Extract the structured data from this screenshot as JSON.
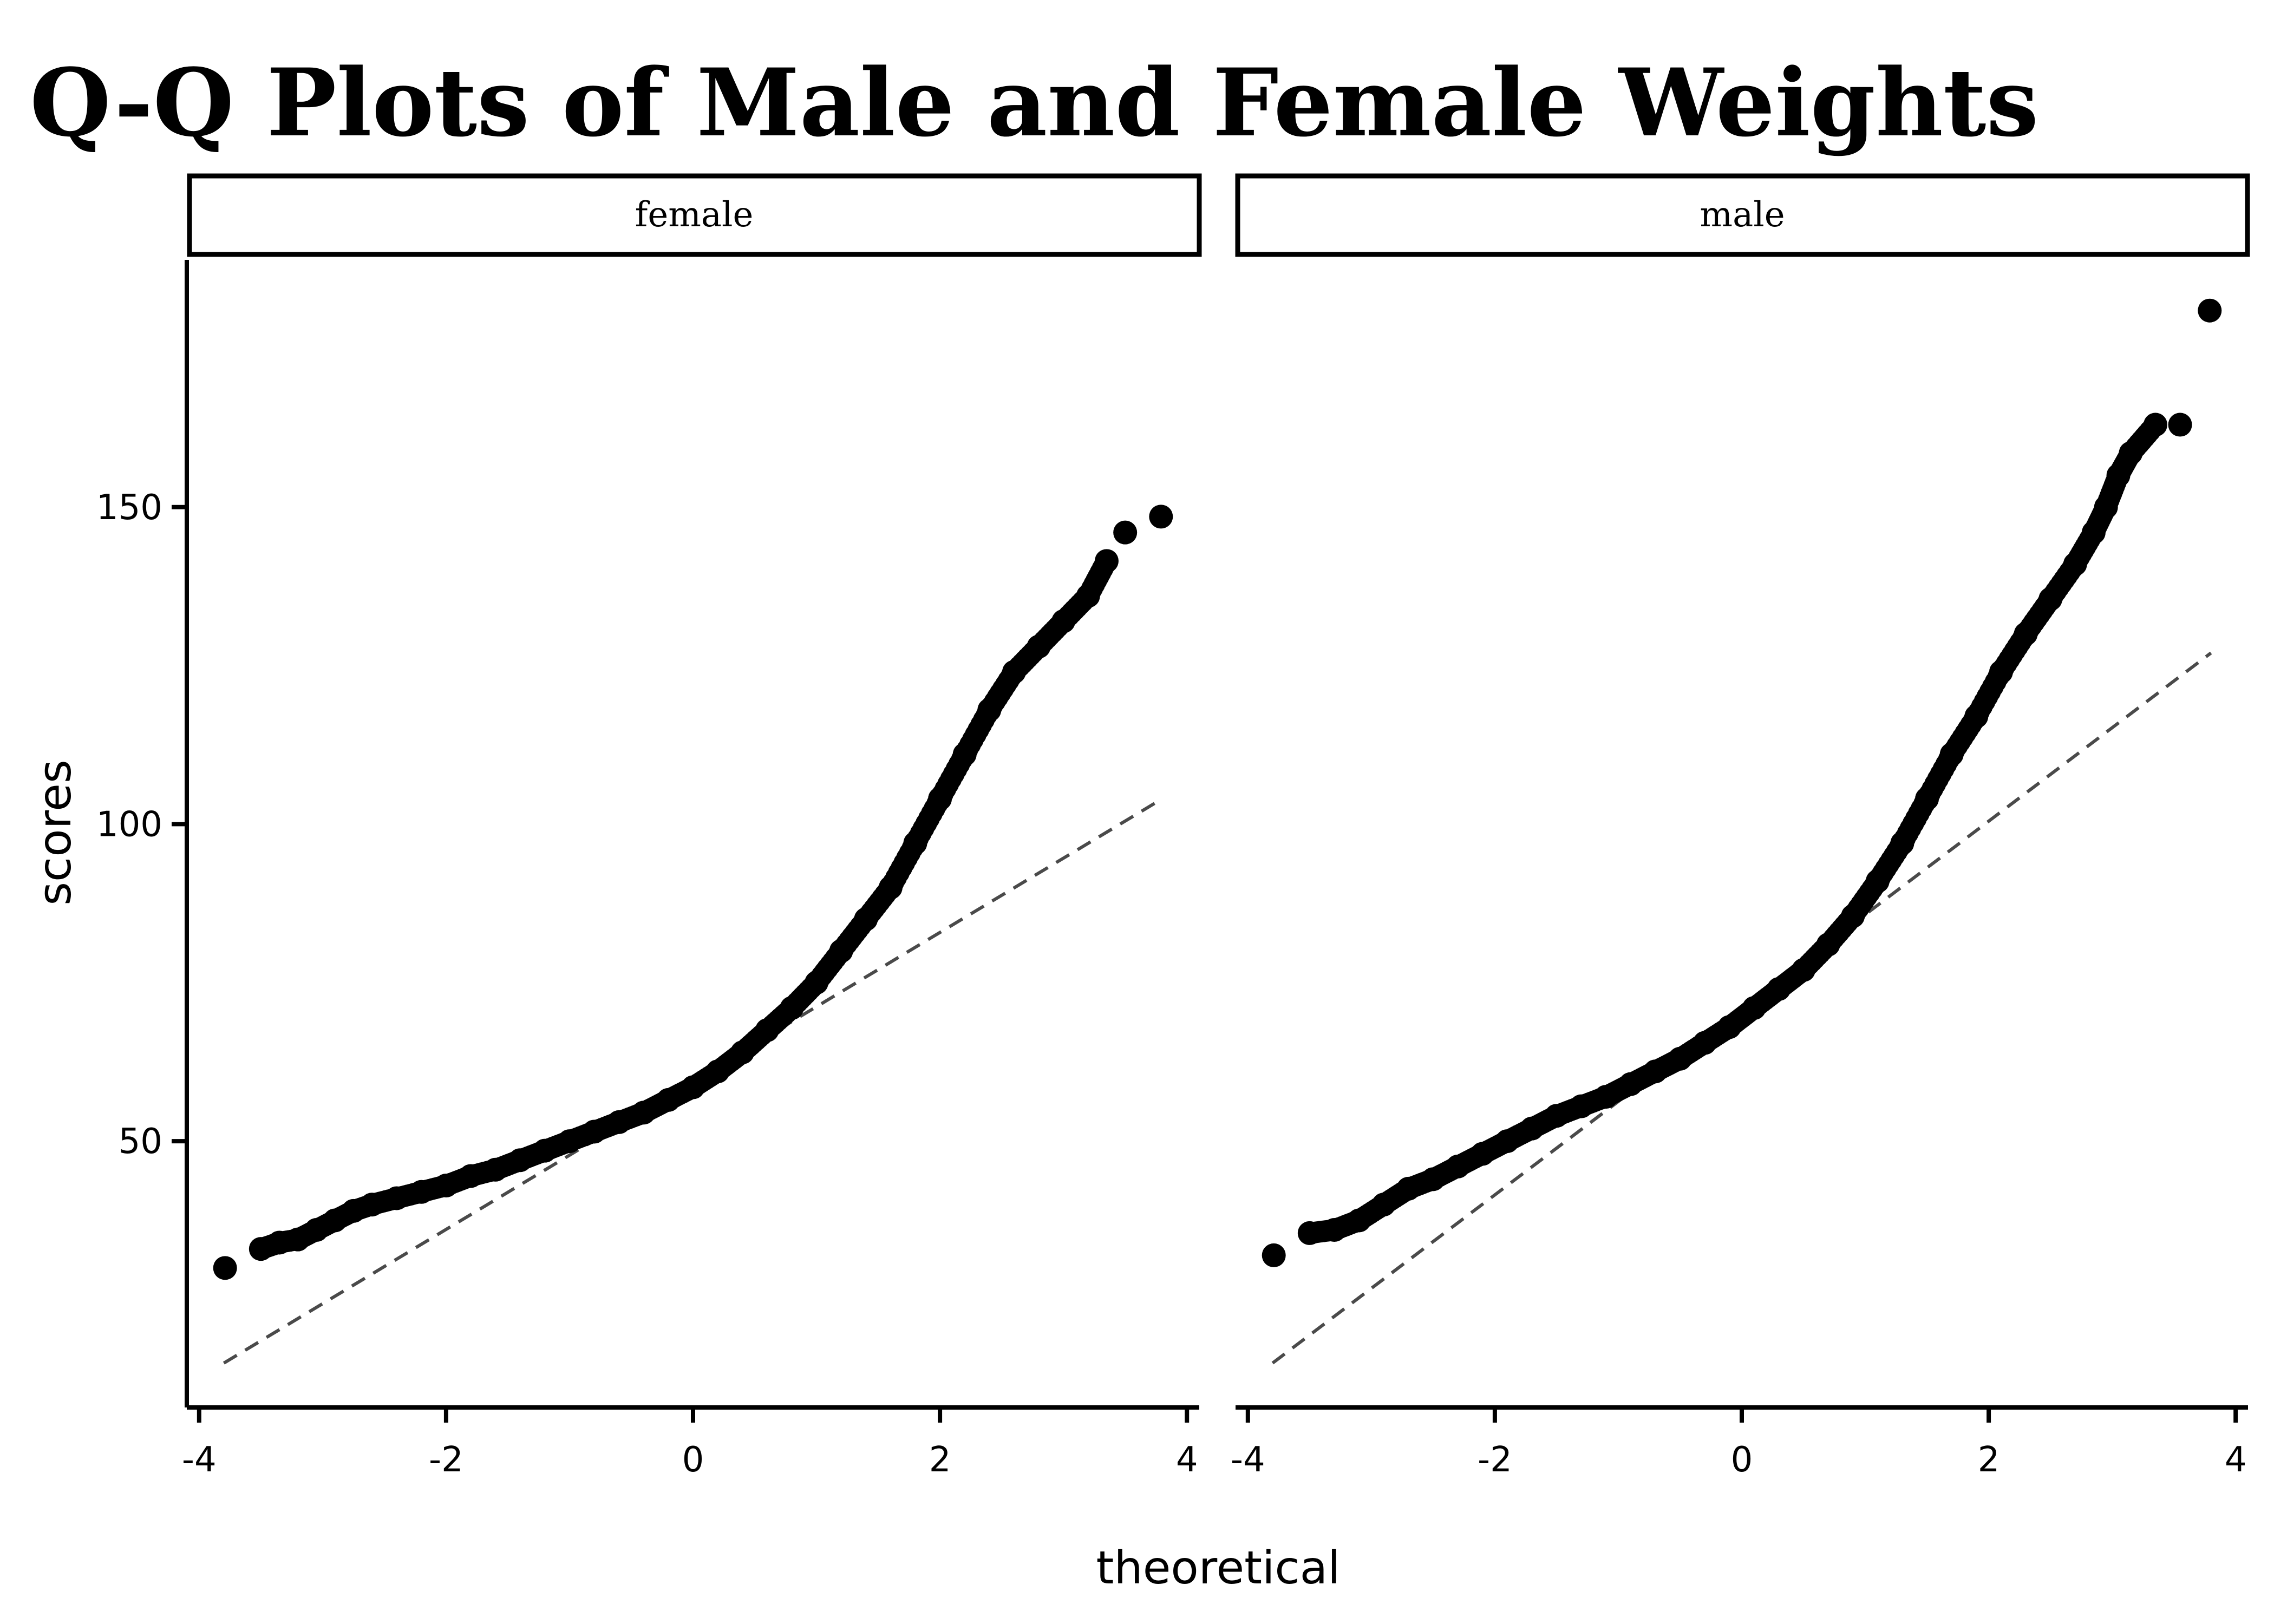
{
  "chart_data": {
    "type": "scatter",
    "title": "Q-Q Plots of Male and Female Weights",
    "xlabel": "theoretical",
    "ylabel": "scores",
    "xlim": [
      -4.1,
      4.1
    ],
    "ylim": [
      8,
      189
    ],
    "x_ticks": [
      "-4",
      "-2",
      "0",
      "2",
      "4"
    ],
    "y_ticks": [
      "50",
      "100",
      "150"
    ],
    "panels": [
      {
        "label": "female",
        "reference_line": {
          "x": [
            -3.8,
            3.8
          ],
          "y": [
            15,
            104
          ]
        },
        "points": [
          [
            -3.79,
            30
          ],
          [
            -3.5,
            33
          ],
          [
            -3.35,
            34
          ],
          [
            -3.2,
            34.5
          ],
          [
            -3.05,
            36
          ],
          [
            -2.9,
            37.5
          ],
          [
            -2.75,
            39
          ],
          [
            -2.6,
            40
          ],
          [
            -2.4,
            41
          ],
          [
            -2.2,
            42
          ],
          [
            -2.0,
            43
          ],
          [
            -1.8,
            44.5
          ],
          [
            -1.6,
            45.5
          ],
          [
            -1.4,
            47
          ],
          [
            -1.2,
            48.5
          ],
          [
            -1.0,
            50
          ],
          [
            -0.8,
            51.5
          ],
          [
            -0.6,
            53
          ],
          [
            -0.4,
            54.5
          ],
          [
            -0.2,
            56.5
          ],
          [
            0.0,
            58.5
          ],
          [
            0.2,
            61
          ],
          [
            0.4,
            64
          ],
          [
            0.6,
            67.5
          ],
          [
            0.8,
            71
          ],
          [
            1.0,
            75
          ],
          [
            1.2,
            80
          ],
          [
            1.4,
            85
          ],
          [
            1.6,
            90
          ],
          [
            1.8,
            97
          ],
          [
            2.0,
            104
          ],
          [
            2.2,
            111
          ],
          [
            2.4,
            118
          ],
          [
            2.6,
            124
          ],
          [
            2.8,
            128
          ],
          [
            3.0,
            132
          ],
          [
            3.2,
            136
          ],
          [
            3.35,
            141.5
          ],
          [
            3.5,
            146
          ],
          [
            3.79,
            148.5
          ]
        ]
      },
      {
        "label": "male",
        "reference_line": {
          "x": [
            -3.8,
            3.8
          ],
          "y": [
            15,
            127
          ]
        },
        "points": [
          [
            -3.79,
            32
          ],
          [
            -3.5,
            35.5
          ],
          [
            -3.3,
            36
          ],
          [
            -3.1,
            37.5
          ],
          [
            -2.9,
            40
          ],
          [
            -2.7,
            42.5
          ],
          [
            -2.5,
            44
          ],
          [
            -2.3,
            46
          ],
          [
            -2.1,
            48
          ],
          [
            -1.9,
            50
          ],
          [
            -1.7,
            52
          ],
          [
            -1.5,
            54
          ],
          [
            -1.3,
            55.5
          ],
          [
            -1.1,
            57
          ],
          [
            -0.9,
            59
          ],
          [
            -0.7,
            61
          ],
          [
            -0.5,
            63
          ],
          [
            -0.3,
            65.5
          ],
          [
            -0.1,
            68
          ],
          [
            0.1,
            71
          ],
          [
            0.3,
            74
          ],
          [
            0.5,
            77
          ],
          [
            0.7,
            81
          ],
          [
            0.9,
            85.5
          ],
          [
            1.1,
            91
          ],
          [
            1.3,
            97
          ],
          [
            1.5,
            104
          ],
          [
            1.7,
            111
          ],
          [
            1.9,
            117
          ],
          [
            2.1,
            124
          ],
          [
            2.3,
            130
          ],
          [
            2.5,
            135.5
          ],
          [
            2.7,
            141
          ],
          [
            2.85,
            146
          ],
          [
            2.95,
            150
          ],
          [
            3.05,
            155
          ],
          [
            3.15,
            158.5
          ],
          [
            3.35,
            163
          ],
          [
            3.55,
            163
          ],
          [
            3.79,
            181
          ]
        ]
      }
    ],
    "grid": false,
    "legend": "none",
    "colors": {
      "points": "#000000",
      "reference_line": "#4a4a4a"
    }
  }
}
